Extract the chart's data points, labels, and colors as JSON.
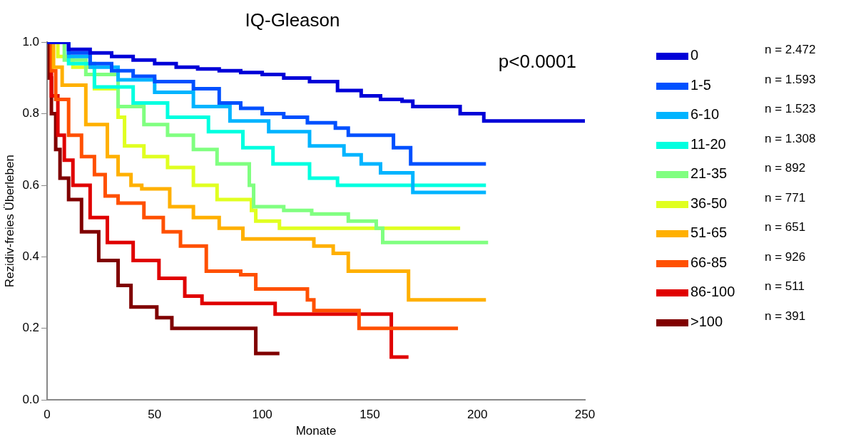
{
  "chart_data": {
    "type": "step",
    "title": "IQ-Gleason",
    "xlabel": "Monate",
    "ylabel": "Rezidiv-freies Überleben",
    "xlim": [
      0,
      250
    ],
    "xticks": [
      0,
      50,
      100,
      150,
      200,
      250
    ],
    "ylim": [
      0,
      1
    ],
    "yticks": [
      {
        "value": 0,
        "label": "0.0"
      },
      {
        "value": 0.2,
        "label": "0.2"
      },
      {
        "value": 0.4,
        "label": "0.4"
      },
      {
        "value": 0.6,
        "label": "0.6"
      },
      {
        "value": 0.8,
        "label": "0.8"
      },
      {
        "value": 1,
        "label": "1.0"
      }
    ],
    "legend": "right",
    "grid": false,
    "annotations": [
      "p<0.0001",
      "n = 2.472",
      "n = 1.593",
      "n = 1.523",
      "n = 1.308",
      "n = 892",
      "n = 771",
      "n = 651",
      "n = 926",
      "n = 511",
      "n = 391"
    ],
    "series": [
      {
        "name": "0",
        "color": "#0000d8",
        "x": [
          0,
          10,
          20,
          30,
          40,
          50,
          60,
          70,
          80,
          90,
          100,
          110,
          122,
          135,
          146,
          155,
          165,
          170,
          185,
          192,
          203,
          250
        ],
        "values": [
          1,
          0.98,
          0.97,
          0.96,
          0.95,
          0.94,
          0.93,
          0.925,
          0.92,
          0.915,
          0.91,
          0.9,
          0.89,
          0.865,
          0.85,
          0.84,
          0.835,
          0.82,
          0.82,
          0.8,
          0.78,
          0.78
        ]
      },
      {
        "name": "1-5",
        "color": "#0050ff",
        "x": [
          0,
          10,
          20,
          30,
          40,
          50,
          68,
          80,
          90,
          100,
          110,
          121,
          134,
          140,
          161,
          169,
          204
        ],
        "values": [
          1,
          0.97,
          0.94,
          0.92,
          0.905,
          0.89,
          0.87,
          0.83,
          0.815,
          0.8,
          0.79,
          0.775,
          0.76,
          0.74,
          0.705,
          0.66,
          0.66
        ]
      },
      {
        "name": "6-10",
        "color": "#00b4ff",
        "x": [
          0,
          10,
          20,
          33,
          50,
          68,
          85,
          103,
          122,
          138,
          146,
          155,
          170,
          204
        ],
        "values": [
          1,
          0.96,
          0.93,
          0.895,
          0.86,
          0.82,
          0.78,
          0.75,
          0.71,
          0.685,
          0.66,
          0.635,
          0.58,
          0.58
        ]
      },
      {
        "name": "11-20",
        "color": "#00ffe0",
        "x": [
          0,
          10,
          22,
          40,
          56,
          75,
          91,
          105,
          122,
          135,
          204
        ],
        "values": [
          1,
          0.94,
          0.875,
          0.83,
          0.79,
          0.75,
          0.705,
          0.66,
          0.62,
          0.6,
          0.6
        ]
      },
      {
        "name": "21-35",
        "color": "#80ff80",
        "x": [
          0,
          8,
          18,
          33,
          45,
          56,
          68,
          79,
          94,
          96,
          110,
          123,
          140,
          153,
          156,
          205
        ],
        "values": [
          1,
          0.95,
          0.91,
          0.82,
          0.77,
          0.74,
          0.7,
          0.66,
          0.6,
          0.54,
          0.53,
          0.52,
          0.5,
          0.48,
          0.44,
          0.44
        ]
      },
      {
        "name": "36-50",
        "color": "#e0ff20",
        "x": [
          0,
          5,
          12,
          22,
          33,
          36,
          45,
          56,
          68,
          79,
          95,
          97,
          108,
          192
        ],
        "values": [
          1,
          0.96,
          0.93,
          0.87,
          0.79,
          0.71,
          0.68,
          0.65,
          0.6,
          0.56,
          0.53,
          0.5,
          0.48,
          0.48
        ]
      },
      {
        "name": "51-65",
        "color": "#ffb000",
        "x": [
          0,
          3,
          7,
          18,
          28,
          33,
          39,
          44,
          57,
          68,
          80,
          91,
          124,
          133,
          140,
          168,
          204
        ],
        "values": [
          1,
          0.93,
          0.88,
          0.77,
          0.68,
          0.63,
          0.6,
          0.59,
          0.54,
          0.51,
          0.48,
          0.45,
          0.43,
          0.41,
          0.36,
          0.28,
          0.28
        ]
      },
      {
        "name": "66-85",
        "color": "#ff5000",
        "x": [
          0,
          2,
          4,
          10,
          16,
          22,
          27,
          33,
          45,
          54,
          62,
          74,
          90,
          97,
          121,
          124,
          145,
          191
        ],
        "values": [
          1,
          0.92,
          0.84,
          0.74,
          0.68,
          0.63,
          0.57,
          0.55,
          0.51,
          0.47,
          0.43,
          0.36,
          0.35,
          0.31,
          0.28,
          0.25,
          0.2,
          0.2
        ]
      },
      {
        "name": "86-100",
        "color": "#e00000",
        "x": [
          0,
          2,
          5,
          8,
          12,
          20,
          28,
          40,
          52,
          64,
          72,
          106,
          160,
          168
        ],
        "values": [
          1,
          0.85,
          0.74,
          0.67,
          0.6,
          0.51,
          0.44,
          0.39,
          0.34,
          0.29,
          0.27,
          0.24,
          0.12,
          0.12
        ]
      },
      {
        "name": ">100",
        "color": "#800000",
        "x": [
          0,
          1,
          2,
          4,
          6,
          10,
          16,
          24,
          33,
          39,
          51,
          58,
          97,
          108
        ],
        "values": [
          1,
          0.9,
          0.8,
          0.7,
          0.62,
          0.56,
          0.47,
          0.39,
          0.32,
          0.26,
          0.23,
          0.2,
          0.13,
          0.13
        ]
      }
    ]
  }
}
